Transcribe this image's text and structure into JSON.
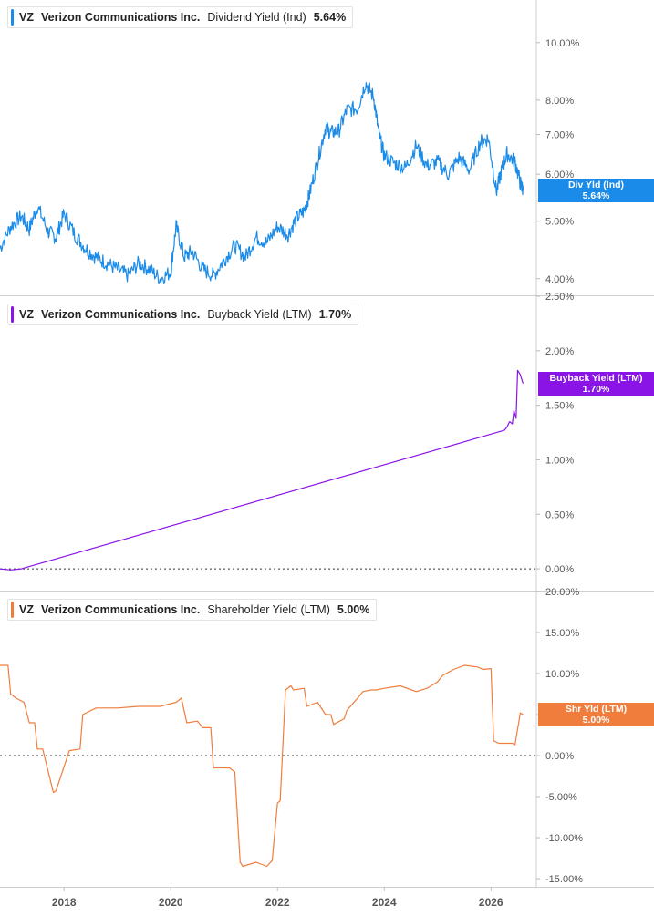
{
  "chart_data": [
    {
      "type": "line",
      "ticker": "VZ",
      "company": "Verizon Communications Inc.",
      "metric": "Dividend Yield (Ind)",
      "latest": "5.64%",
      "tag_label": "Div Yld (Ind)",
      "tag_value": "5.64%",
      "color": "#1a8be8",
      "scale": "log",
      "ylim": [
        3.75,
        11.8
      ],
      "yticks": [
        4,
        5,
        6,
        7,
        8,
        10
      ],
      "ytick_labels": [
        "4.00%",
        "5.00%",
        "6.00%",
        "7.00%",
        "8.00%",
        "10.00%"
      ],
      "series": [
        {
          "x": [
            2016.8,
            2017.0,
            2017.2,
            2017.35,
            2017.5,
            2017.7,
            2017.85,
            2018.0,
            2018.2,
            2018.4,
            2018.6,
            2018.8,
            2019.0,
            2019.2,
            2019.4,
            2019.6,
            2019.8,
            2020.0,
            2020.1,
            2020.25,
            2020.4,
            2020.6,
            2020.8,
            2021.0,
            2021.2,
            2021.4,
            2021.6,
            2021.8,
            2022.0,
            2022.2,
            2022.35,
            2022.5,
            2022.6,
            2022.75,
            2022.9,
            2023.0,
            2023.15,
            2023.3,
            2023.5,
            2023.65,
            2023.8,
            2023.9,
            2024.0,
            2024.2,
            2024.4,
            2024.6,
            2024.8,
            2025.0,
            2025.2,
            2025.4,
            2025.6,
            2025.8,
            2025.95,
            2026.1,
            2026.2,
            2026.3,
            2026.45,
            2026.55,
            2026.6
          ],
          "y": [
            4.5,
            4.9,
            5.1,
            4.85,
            5.3,
            4.8,
            4.7,
            5.15,
            4.75,
            4.5,
            4.35,
            4.25,
            4.15,
            4.05,
            4.25,
            4.15,
            4.0,
            4.1,
            4.9,
            4.35,
            4.45,
            4.15,
            4.05,
            4.3,
            4.55,
            4.35,
            4.7,
            4.6,
            4.9,
            4.75,
            5.05,
            5.2,
            5.55,
            6.3,
            7.2,
            7.05,
            7.1,
            7.7,
            7.75,
            8.55,
            8.1,
            7.0,
            6.45,
            6.25,
            6.15,
            6.7,
            6.2,
            6.3,
            6.0,
            6.4,
            6.1,
            6.8,
            6.9,
            5.6,
            6.1,
            6.5,
            6.3,
            5.8,
            5.64
          ]
        }
      ]
    },
    {
      "type": "line",
      "ticker": "VZ",
      "company": "Verizon Communications Inc.",
      "metric": "Buyback Yield (LTM)",
      "latest": "1.70%",
      "tag_label": "Buyback Yield (LTM)",
      "tag_value": "1.70%",
      "color": "#8a14e6",
      "ylim": [
        -0.2,
        2.5
      ],
      "yticks": [
        0,
        0.5,
        1.0,
        1.5,
        2.0,
        2.5
      ],
      "ytick_labels": [
        "0.00%",
        "0.50%",
        "1.00%",
        "1.50%",
        "2.00%",
        "2.50%"
      ],
      "zero_line": true,
      "series": [
        {
          "x": [
            2016.8,
            2017.0,
            2017.2,
            2026.25,
            2026.3,
            2026.35,
            2026.4,
            2026.43,
            2026.47,
            2026.5,
            2026.55,
            2026.6
          ],
          "y": [
            0.0,
            -0.01,
            0.0,
            1.27,
            1.3,
            1.35,
            1.33,
            1.45,
            1.38,
            1.82,
            1.78,
            1.7
          ]
        }
      ]
    },
    {
      "type": "line",
      "ticker": "VZ",
      "company": "Verizon Communications Inc.",
      "metric": "Shareholder Yield (LTM)",
      "latest": "5.00%",
      "tag_label": "Shr Yld (LTM)",
      "tag_value": "5.00%",
      "color": "#f07d3c",
      "ylim": [
        -16,
        20
      ],
      "yticks": [
        -15,
        -10,
        -5,
        0,
        5,
        10,
        15,
        20
      ],
      "ytick_labels": [
        "-15.00%",
        "-10.00%",
        "-5.00%",
        "0.00%",
        "5.00%",
        "10.00%",
        "15.00%",
        "20.00%"
      ],
      "zero_line": true,
      "series": [
        {
          "x": [
            2016.8,
            2016.95,
            2017.0,
            2017.1,
            2017.25,
            2017.35,
            2017.45,
            2017.5,
            2017.6,
            2017.8,
            2017.85,
            2018.1,
            2018.3,
            2018.35,
            2018.6,
            2019.0,
            2019.4,
            2019.8,
            2020.1,
            2020.2,
            2020.3,
            2020.5,
            2020.6,
            2020.75,
            2020.8,
            2021.1,
            2021.2,
            2021.3,
            2021.35,
            2021.6,
            2021.8,
            2021.9,
            2022.0,
            2022.05,
            2022.15,
            2022.25,
            2022.3,
            2022.5,
            2022.55,
            2022.75,
            2022.9,
            2023.0,
            2023.05,
            2023.25,
            2023.3,
            2023.5,
            2023.6,
            2023.75,
            2023.85,
            2024.0,
            2024.3,
            2024.6,
            2024.8,
            2025.0,
            2025.1,
            2025.3,
            2025.5,
            2025.75,
            2025.85,
            2026.0,
            2026.05,
            2026.15,
            2026.4,
            2026.45,
            2026.55,
            2026.6
          ],
          "y": [
            11.0,
            11.0,
            7.5,
            7.0,
            6.5,
            4.0,
            4.0,
            0.8,
            0.8,
            -4.5,
            -4.3,
            0.6,
            0.8,
            5.0,
            5.8,
            5.8,
            6.0,
            6.0,
            6.5,
            7.0,
            4.0,
            4.2,
            3.4,
            3.4,
            -1.5,
            -1.5,
            -2.0,
            -13.0,
            -13.5,
            -13.0,
            -13.5,
            -12.8,
            -5.8,
            -5.5,
            8.0,
            8.5,
            8.0,
            8.2,
            6.0,
            6.5,
            5.0,
            5.0,
            3.8,
            4.5,
            5.5,
            7.0,
            7.8,
            8.0,
            8.0,
            8.2,
            8.5,
            7.8,
            8.2,
            9.0,
            9.8,
            10.5,
            11.0,
            10.8,
            10.5,
            10.6,
            1.8,
            1.5,
            1.5,
            1.3,
            5.2,
            5.0
          ]
        }
      ]
    }
  ],
  "x_axis": {
    "ticks": [
      2018,
      2020,
      2022,
      2024,
      2026
    ],
    "tick_labels": [
      "2018",
      "2020",
      "2022",
      "2024",
      "2026"
    ],
    "range": [
      2016.8,
      2026.85
    ]
  }
}
